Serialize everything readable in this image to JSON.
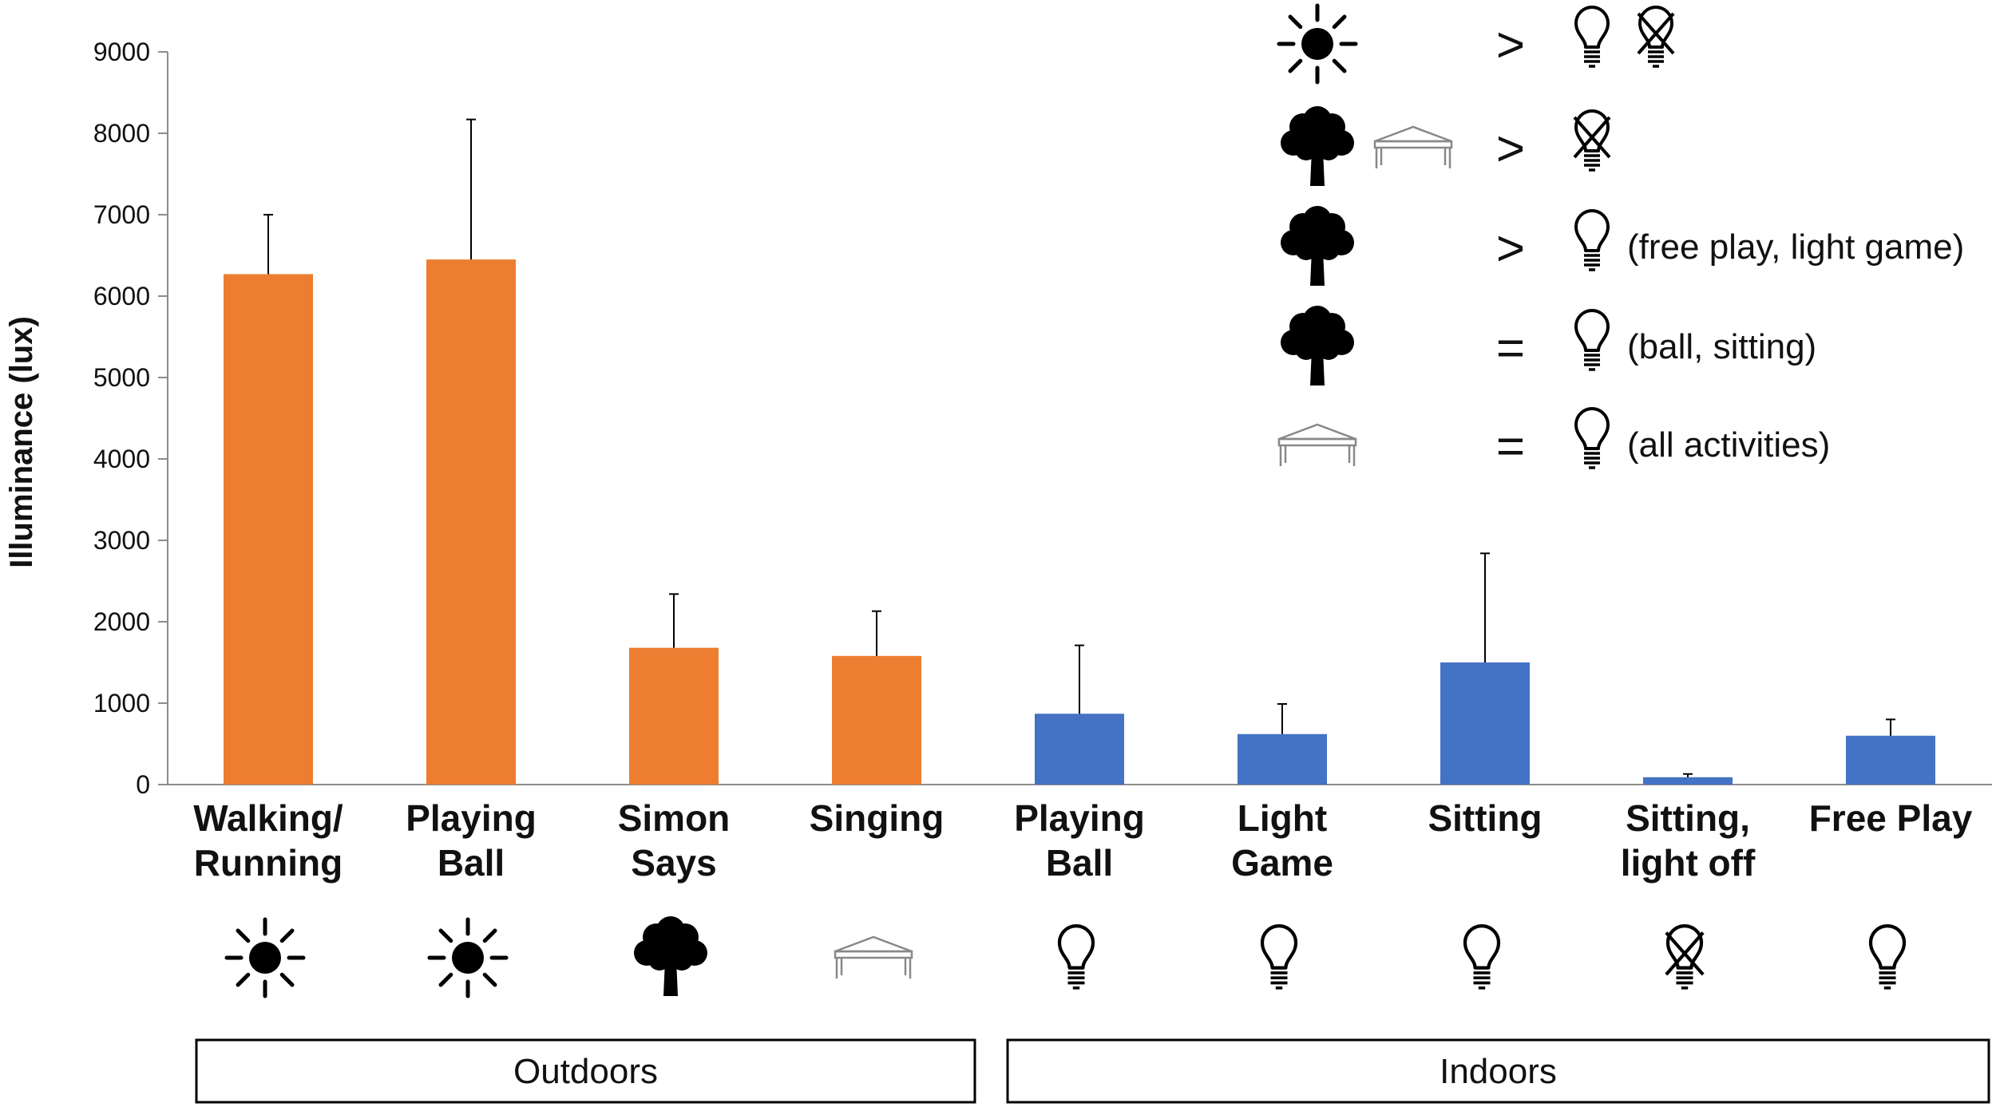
{
  "chart_data": {
    "type": "bar",
    "title": "",
    "xlabel": "",
    "ylabel": "Illuminance (lux)",
    "ylim": [
      0,
      9000
    ],
    "yticks": [
      0,
      1000,
      2000,
      3000,
      4000,
      5000,
      6000,
      7000,
      8000,
      9000
    ],
    "grid": false,
    "categories": [
      {
        "lines": [
          "Walking/",
          "Running"
        ],
        "value": 6270,
        "error": 730,
        "setting": "outdoors",
        "icon": "sun-icon"
      },
      {
        "lines": [
          "Playing",
          "Ball"
        ],
        "value": 6450,
        "error": 1720,
        "setting": "outdoors",
        "icon": "sun-icon"
      },
      {
        "lines": [
          "Simon",
          "Says"
        ],
        "value": 1680,
        "error": 660,
        "setting": "outdoors",
        "icon": "tree-icon"
      },
      {
        "lines": [
          "Singing"
        ],
        "value": 1580,
        "error": 550,
        "setting": "outdoors",
        "icon": "tent-icon"
      },
      {
        "lines": [
          "Playing",
          "Ball"
        ],
        "value": 870,
        "error": 840,
        "setting": "indoors",
        "icon": "lightbulb-icon"
      },
      {
        "lines": [
          "Light",
          "Game"
        ],
        "value": 620,
        "error": 370,
        "setting": "indoors",
        "icon": "lightbulb-icon"
      },
      {
        "lines": [
          "Sitting"
        ],
        "value": 1500,
        "error": 1340,
        "setting": "indoors",
        "icon": "lightbulb-icon"
      },
      {
        "lines": [
          "Sitting,",
          "light off"
        ],
        "value": 90,
        "error": 40,
        "setting": "indoors",
        "icon": "lightbulb-off-icon"
      },
      {
        "lines": [
          "Free Play"
        ],
        "value": 600,
        "error": 200,
        "setting": "indoors",
        "icon": "lightbulb-icon"
      }
    ],
    "colors": {
      "outdoors": "#ED7D31",
      "indoors": "#4472C4"
    },
    "groups": [
      {
        "label": "Outdoors",
        "from": 0,
        "to": 3
      },
      {
        "label": "Indoors",
        "from": 4,
        "to": 8
      }
    ],
    "legend": [
      {
        "left": [
          "sun-icon"
        ],
        "op": ">",
        "right": [
          "lightbulb-icon",
          "lightbulb-off-icon"
        ],
        "text": ""
      },
      {
        "left": [
          "tree-icon",
          "tent-icon"
        ],
        "op": ">",
        "right": [
          "lightbulb-off-icon"
        ],
        "text": ""
      },
      {
        "left": [
          "tree-icon"
        ],
        "op": ">",
        "right": [
          "lightbulb-icon"
        ],
        "text": "(free play, light game)"
      },
      {
        "left": [
          "tree-icon"
        ],
        "op": "=",
        "right": [
          "lightbulb-icon"
        ],
        "text": "(ball, sitting)"
      },
      {
        "left": [
          "tent-icon"
        ],
        "op": "=",
        "right": [
          "lightbulb-icon"
        ],
        "text": "(all activities)"
      }
    ]
  }
}
